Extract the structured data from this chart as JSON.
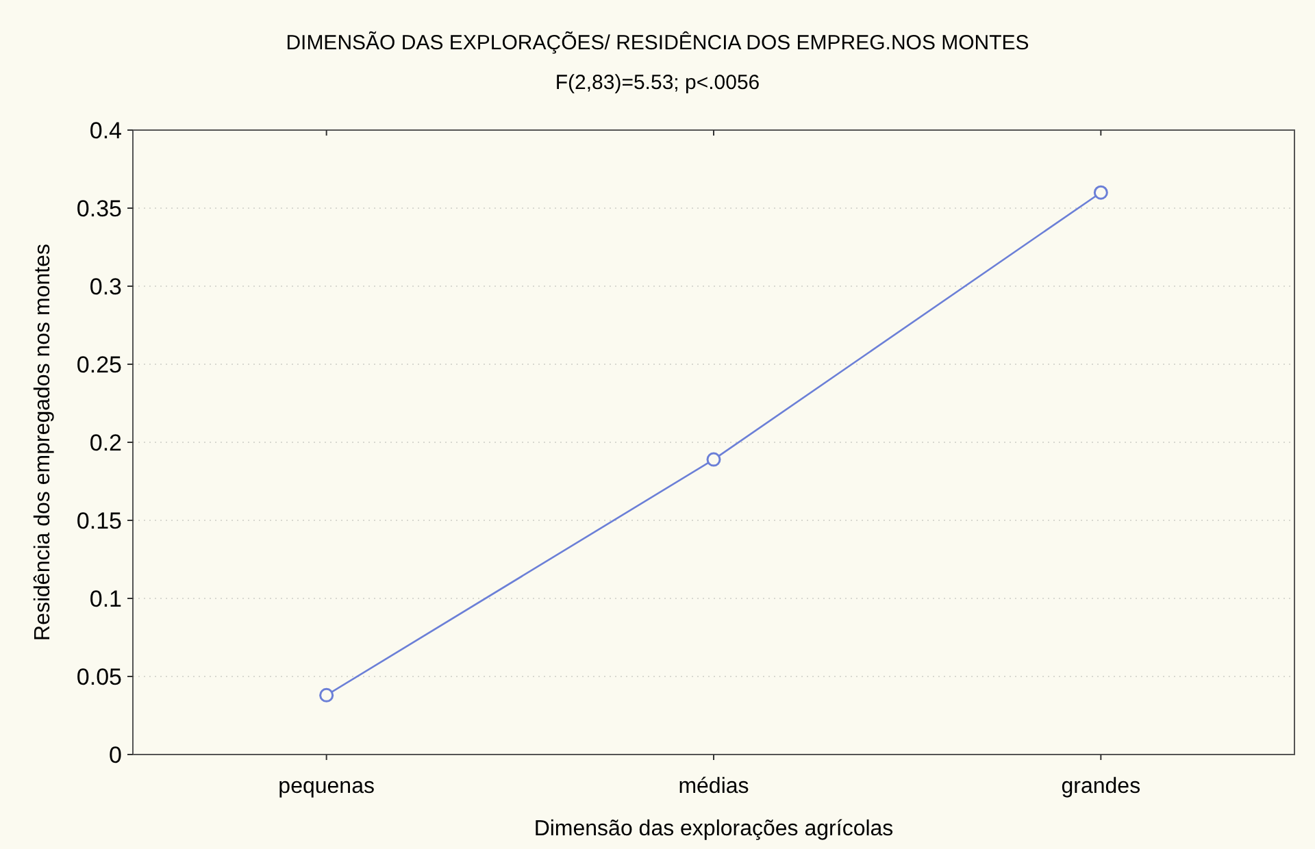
{
  "chart_data": {
    "type": "line",
    "title": "DIMENSÃO DAS EXPLORAÇÕES/ RESIDÊNCIA DOS EMPREG.NOS MONTES",
    "subtitle": "F(2,83)=5.53; p<.0056",
    "xlabel": "Dimensão das explorações agrícolas",
    "ylabel": "Residência dos empregados nos montes",
    "categories": [
      "pequenas",
      "médias",
      "grandes"
    ],
    "series": [
      {
        "color": "#6b7fd7",
        "values": [
          0.038,
          0.189,
          0.36
        ]
      }
    ],
    "ylim": [
      0,
      0.4
    ],
    "yticks": [
      0,
      0.05,
      0.1,
      0.15,
      0.2,
      0.25,
      0.3,
      0.35,
      0.4
    ],
    "grid": "y",
    "marker": "circle",
    "line_style": "solid"
  }
}
